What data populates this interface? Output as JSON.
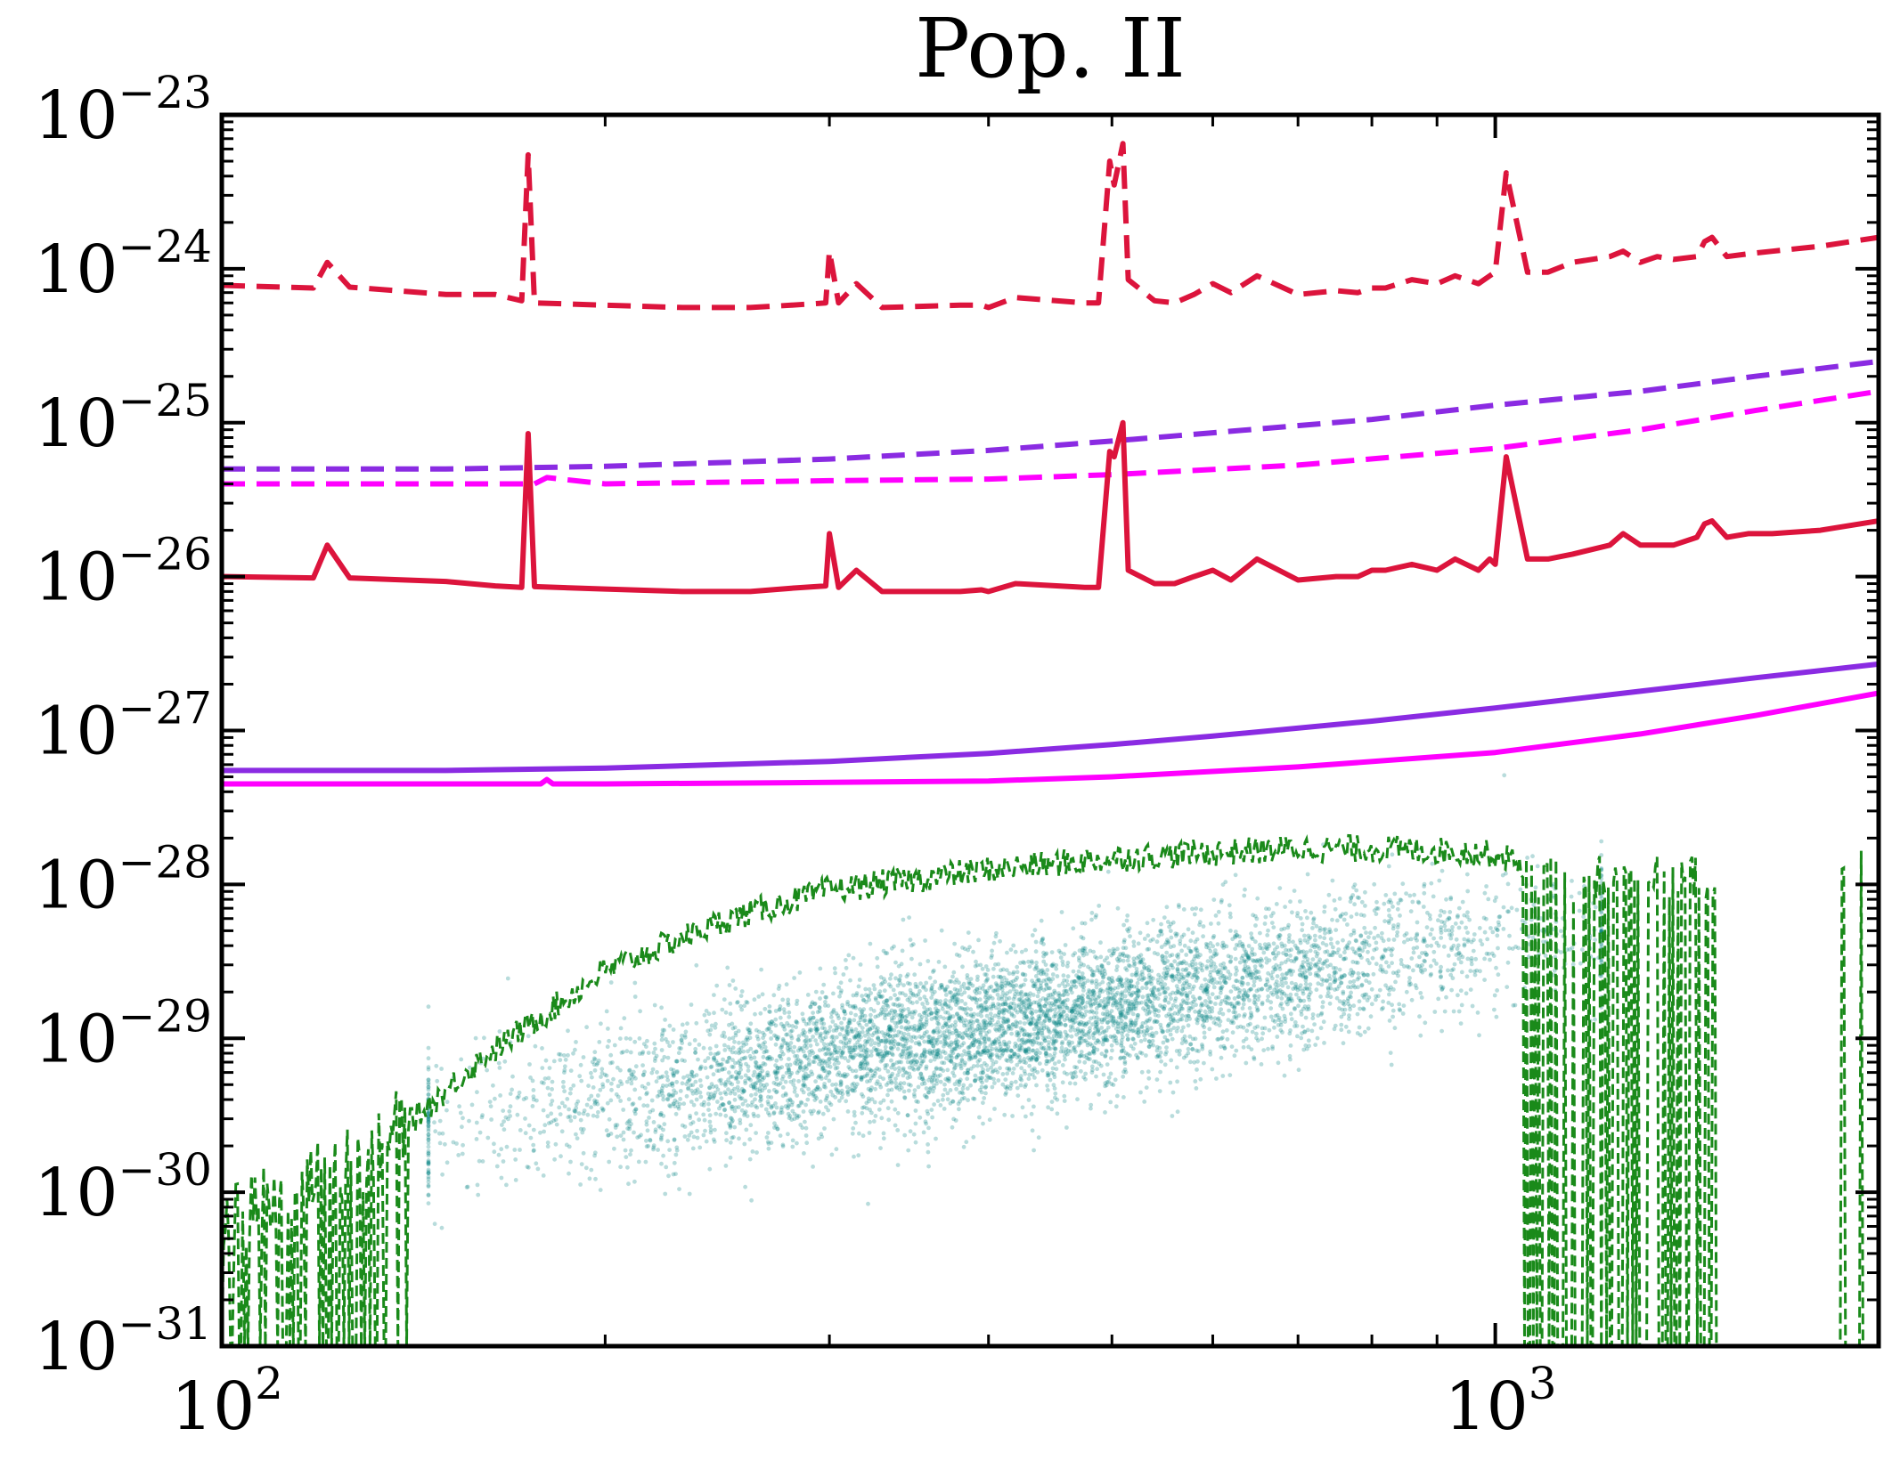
{
  "chart_data": {
    "type": "line",
    "title": "Pop. II",
    "xlabel": "",
    "ylabel": "",
    "xscale": "log",
    "yscale": "log",
    "xlim": [
      100,
      2000
    ],
    "ylim": [
      1e-31,
      1e-23
    ],
    "x_ticks": [
      {
        "value": 100,
        "base": "10",
        "exp": "2"
      },
      {
        "value": 1000,
        "base": "10",
        "exp": "3"
      }
    ],
    "y_ticks": [
      {
        "value": 1e-23,
        "base": "10",
        "exp": "−23"
      },
      {
        "value": 1e-24,
        "base": "10",
        "exp": "−24"
      },
      {
        "value": 1e-25,
        "base": "10",
        "exp": "−25"
      },
      {
        "value": 1e-26,
        "base": "10",
        "exp": "−26"
      },
      {
        "value": 1e-27,
        "base": "10",
        "exp": "−27"
      },
      {
        "value": 1e-28,
        "base": "10",
        "exp": "−28"
      },
      {
        "value": 1e-29,
        "base": "10",
        "exp": "−29"
      },
      {
        "value": 1e-30,
        "base": "10",
        "exp": "−30"
      },
      {
        "value": 1e-31,
        "base": "10",
        "exp": "−31"
      }
    ],
    "series": [
      {
        "name": "red-dashed",
        "color": "#dc143c",
        "dash": true,
        "x": [
          100,
          118,
          121,
          126,
          150,
          164,
          172,
          174,
          176,
          200,
          230,
          260,
          280,
          298,
          300,
          305,
          315,
          330,
          380,
          395,
          400,
          420,
          476,
          488,
          498,
          502,
          510,
          515,
          540,
          560,
          580,
          600,
          620,
          650,
          700,
          750,
          780,
          800,
          820,
          860,
          900,
          930,
          970,
          990,
          1000,
          1020,
          1060,
          1100,
          1150,
          1230,
          1260,
          1300,
          1340,
          1380,
          1440,
          1460,
          1480,
          1520,
          1580,
          1650,
          1800,
          2000
        ],
        "y": [
          7.8e-25,
          7.5e-25,
          1.1e-24,
          7.6e-25,
          6.8e-25,
          6.8e-25,
          6.2e-25,
          5.5e-24,
          6e-25,
          5.8e-25,
          5.6e-25,
          5.6e-25,
          5.8e-25,
          6e-25,
          1.3e-24,
          6e-25,
          8e-25,
          5.6e-25,
          5.8e-25,
          5.8e-25,
          5.6e-25,
          6.5e-25,
          6e-25,
          6e-25,
          5e-24,
          3.5e-24,
          6.5e-24,
          8.5e-25,
          6.2e-25,
          6e-25,
          6.8e-25,
          8e-25,
          7e-25,
          9e-25,
          6.8e-25,
          7.2e-25,
          7e-25,
          7.5e-25,
          7.5e-25,
          8.5e-25,
          8e-25,
          9e-25,
          8e-25,
          9e-25,
          9.5e-25,
          4.2e-24,
          9.5e-25,
          9.5e-25,
          1.1e-24,
          1.2e-24,
          1.3e-24,
          1.1e-24,
          1.2e-24,
          1.15e-24,
          1.2e-24,
          1.5e-24,
          1.6e-24,
          1.2e-24,
          1.25e-24,
          1.3e-24,
          1.4e-24,
          1.6e-24
        ]
      },
      {
        "name": "purple-dashed",
        "color": "#8a2be2",
        "dash": true,
        "x": [
          100,
          150,
          200,
          300,
          400,
          500,
          600,
          800,
          1000,
          1300,
          1600,
          2000
        ],
        "y": [
          5e-26,
          5e-26,
          5.2e-26,
          5.8e-26,
          6.6e-26,
          7.6e-26,
          8.6e-26,
          1.05e-25,
          1.3e-25,
          1.6e-25,
          2e-25,
          2.5e-25
        ]
      },
      {
        "name": "magenta-dashed",
        "color": "#ff00ff",
        "dash": true,
        "x": [
          100,
          150,
          176,
          180,
          200,
          300,
          400,
          500,
          700,
          1000,
          1300,
          1600,
          2000
        ],
        "y": [
          4e-26,
          4e-26,
          4e-26,
          4.4e-26,
          4e-26,
          4.2e-26,
          4.3e-26,
          4.6e-26,
          5.3e-26,
          6.8e-26,
          9e-26,
          1.2e-25,
          1.6e-25
        ]
      },
      {
        "name": "red-solid",
        "color": "#dc143c",
        "dash": false,
        "x": [
          100,
          118,
          121,
          126,
          150,
          164,
          172,
          174,
          176,
          200,
          230,
          260,
          280,
          298,
          300,
          305,
          315,
          330,
          380,
          395,
          400,
          420,
          476,
          488,
          498,
          502,
          510,
          515,
          540,
          560,
          580,
          600,
          620,
          650,
          700,
          750,
          780,
          800,
          820,
          860,
          900,
          930,
          970,
          990,
          1000,
          1020,
          1060,
          1100,
          1150,
          1230,
          1260,
          1300,
          1340,
          1380,
          1440,
          1460,
          1480,
          1520,
          1580,
          1650,
          1800,
          2000
        ],
        "y": [
          1e-26,
          9.8e-27,
          1.6e-26,
          9.8e-27,
          9.3e-27,
          8.7e-27,
          8.5e-27,
          8.5e-26,
          8.6e-27,
          8.3e-27,
          8e-27,
          8e-27,
          8.4e-27,
          8.7e-27,
          1.9e-26,
          8.5e-27,
          1.1e-26,
          8e-27,
          8e-27,
          8.2e-27,
          8e-27,
          9e-27,
          8.5e-27,
          8.5e-27,
          6.5e-26,
          6e-26,
          1e-25,
          1.1e-26,
          9e-27,
          9e-27,
          1e-26,
          1.1e-26,
          9.5e-27,
          1.3e-26,
          9.5e-27,
          1e-26,
          1e-26,
          1.1e-26,
          1.1e-26,
          1.2e-26,
          1.1e-26,
          1.3e-26,
          1.1e-26,
          1.3e-26,
          1.2e-26,
          6e-26,
          1.3e-26,
          1.3e-26,
          1.4e-26,
          1.6e-26,
          1.9e-26,
          1.6e-26,
          1.6e-26,
          1.6e-26,
          1.8e-26,
          2.2e-26,
          2.3e-26,
          1.8e-26,
          1.9e-26,
          1.9e-26,
          2e-26,
          2.3e-26
        ]
      },
      {
        "name": "purple-solid",
        "color": "#8a2be2",
        "dash": false,
        "x": [
          100,
          150,
          200,
          300,
          400,
          500,
          600,
          800,
          1000,
          1300,
          1600,
          2000
        ],
        "y": [
          5.5e-28,
          5.5e-28,
          5.7e-28,
          6.3e-28,
          7.1e-28,
          8.1e-28,
          9.2e-28,
          1.15e-27,
          1.4e-27,
          1.8e-27,
          2.2e-27,
          2.7e-27
        ]
      },
      {
        "name": "magenta-solid",
        "color": "#ff00ff",
        "dash": false,
        "x": [
          100,
          150,
          178,
          180,
          182,
          200,
          300,
          400,
          500,
          700,
          1000,
          1300,
          1600,
          2000
        ],
        "y": [
          4.5e-28,
          4.5e-28,
          4.5e-28,
          4.8e-28,
          4.5e-28,
          4.5e-28,
          4.6e-28,
          4.7e-28,
          5e-28,
          5.8e-28,
          7.2e-28,
          9.5e-28,
          1.25e-27,
          1.75e-27
        ]
      },
      {
        "name": "green-dashed-envelope",
        "color": "#1a8a1a",
        "dash": true,
        "x": [
          100,
          110,
          120,
          130,
          140,
          150,
          160,
          180,
          200,
          250,
          300,
          400,
          500,
          600,
          700,
          800,
          900,
          1000,
          1050
        ],
        "y": [
          6e-31,
          9e-31,
          1.4e-30,
          1.8e-30,
          3e-30,
          5e-30,
          8e-30,
          1.6e-29,
          3e-29,
          6.5e-29,
          1e-28,
          1.35e-28,
          1.6e-28,
          1.75e-28,
          1.85e-28,
          1.85e-28,
          1.8e-28,
          1.7e-28,
          1.5e-28
        ]
      }
    ],
    "scatter": {
      "name": "teal-scatter",
      "color": "#008080",
      "n_points": 6000,
      "trend_x": [
        160,
        1100
      ],
      "trend_y": [
        3e-30,
        5e-29
      ],
      "spread_dex": 0.55
    }
  }
}
